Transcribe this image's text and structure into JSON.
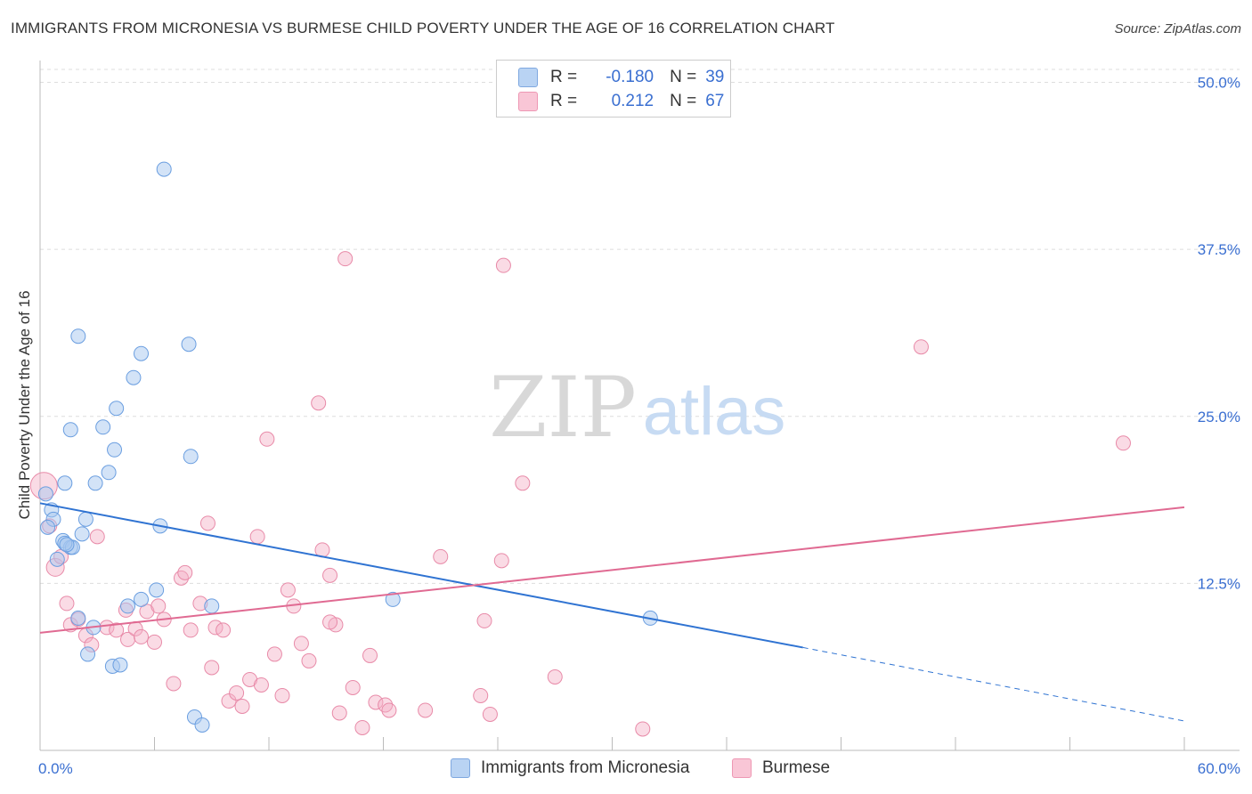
{
  "title": "IMMIGRANTS FROM MICRONESIA VS BURMESE CHILD POVERTY UNDER THE AGE OF 16 CORRELATION CHART",
  "source": "Source: ZipAtlas.com",
  "watermark": {
    "zip": "ZIP",
    "atlas": "atlas"
  },
  "legend": {
    "r_label": "R =",
    "n_label": "N =",
    "rows": [
      {
        "r": "-0.180",
        "n": "39"
      },
      {
        "r": "0.212",
        "n": "67"
      }
    ]
  },
  "chart_data": {
    "type": "scatter",
    "title": "IMMIGRANTS FROM MICRONESIA VS BURMESE CHILD POVERTY UNDER THE AGE OF 16 CORRELATION CHART",
    "xlabel": "",
    "ylabel": "Child Poverty Under the Age of 16",
    "xlim": [
      0,
      60
    ],
    "ylim": [
      0,
      51.5
    ],
    "x_tick_labels": [
      "0.0%",
      "60.0%"
    ],
    "y_ticks": [
      12.5,
      25.0,
      37.5,
      50.0
    ],
    "y_tick_labels": [
      "12.5%",
      "25.0%",
      "37.5%",
      "50.0%"
    ],
    "colors": {
      "micronesia": "#a8c8f0",
      "micronesia_line": "#2f73d2",
      "burmese": "#f5b0c5",
      "burmese_line": "#e06a92",
      "tick_label": "#3a6fd1"
    },
    "series": [
      {
        "name": "Immigrants from Micronesia",
        "r": -0.18,
        "n": 39,
        "trend": {
          "x0": 0,
          "y0": 18.5,
          "x1": 40,
          "y1": 7.7,
          "dashed_to_x": 60,
          "dashed_to_y": 2.2
        },
        "points": [
          [
            6.5,
            43.5
          ],
          [
            2.0,
            31.0
          ],
          [
            5.3,
            29.7
          ],
          [
            7.8,
            30.4
          ],
          [
            4.9,
            27.9
          ],
          [
            4.0,
            25.6
          ],
          [
            1.6,
            24.0
          ],
          [
            3.3,
            24.2
          ],
          [
            3.9,
            22.5
          ],
          [
            7.9,
            22.0
          ],
          [
            3.6,
            20.8
          ],
          [
            1.3,
            20.0
          ],
          [
            2.9,
            20.0
          ],
          [
            0.3,
            19.2
          ],
          [
            0.6,
            18.0
          ],
          [
            0.7,
            17.3
          ],
          [
            2.4,
            17.3
          ],
          [
            6.3,
            16.8
          ],
          [
            2.2,
            16.2
          ],
          [
            1.2,
            15.7
          ],
          [
            1.6,
            15.2
          ],
          [
            1.7,
            15.2
          ],
          [
            0.9,
            14.3
          ],
          [
            6.1,
            12.0
          ],
          [
            5.3,
            11.3
          ],
          [
            4.6,
            10.8
          ],
          [
            9.0,
            10.8
          ],
          [
            18.5,
            11.3
          ],
          [
            2.0,
            9.9
          ],
          [
            2.8,
            9.2
          ],
          [
            2.5,
            7.2
          ],
          [
            3.8,
            6.3
          ],
          [
            4.2,
            6.4
          ],
          [
            8.1,
            2.5
          ],
          [
            8.5,
            1.9
          ],
          [
            32.0,
            9.9
          ],
          [
            0.4,
            16.7
          ],
          [
            1.3,
            15.5
          ],
          [
            1.4,
            15.4
          ]
        ]
      },
      {
        "name": "Burmese",
        "r": 0.212,
        "n": 67,
        "trend": {
          "x0": 0,
          "y0": 8.8,
          "x1": 60,
          "y1": 18.2
        },
        "points": [
          [
            0.2,
            19.8
          ],
          [
            0.5,
            16.8
          ],
          [
            0.8,
            13.7
          ],
          [
            1.1,
            14.5
          ],
          [
            1.4,
            11.0
          ],
          [
            1.6,
            9.4
          ],
          [
            2.0,
            9.8
          ],
          [
            2.4,
            8.6
          ],
          [
            2.7,
            7.9
          ],
          [
            3.0,
            16.0
          ],
          [
            3.5,
            9.2
          ],
          [
            4.0,
            9.0
          ],
          [
            4.5,
            10.5
          ],
          [
            4.6,
            8.3
          ],
          [
            5.0,
            9.1
          ],
          [
            5.3,
            8.5
          ],
          [
            5.6,
            10.4
          ],
          [
            6.0,
            8.1
          ],
          [
            6.2,
            10.8
          ],
          [
            6.5,
            9.8
          ],
          [
            7.0,
            5.0
          ],
          [
            7.4,
            12.9
          ],
          [
            7.6,
            13.3
          ],
          [
            7.9,
            9.0
          ],
          [
            8.4,
            11.0
          ],
          [
            8.8,
            17.0
          ],
          [
            9.0,
            6.2
          ],
          [
            9.2,
            9.2
          ],
          [
            9.6,
            9.0
          ],
          [
            9.9,
            3.7
          ],
          [
            10.3,
            4.3
          ],
          [
            10.6,
            3.3
          ],
          [
            11.0,
            5.3
          ],
          [
            11.4,
            16.0
          ],
          [
            11.6,
            4.9
          ],
          [
            11.9,
            23.3
          ],
          [
            12.3,
            7.2
          ],
          [
            12.7,
            4.1
          ],
          [
            13.0,
            12.0
          ],
          [
            13.3,
            10.8
          ],
          [
            13.7,
            8.0
          ],
          [
            14.1,
            6.7
          ],
          [
            14.6,
            26.0
          ],
          [
            15.2,
            13.1
          ],
          [
            15.5,
            9.4
          ],
          [
            15.7,
            2.8
          ],
          [
            15.2,
            9.6
          ],
          [
            16.0,
            36.8
          ],
          [
            16.4,
            4.7
          ],
          [
            16.9,
            1.7
          ],
          [
            17.3,
            7.1
          ],
          [
            17.6,
            3.6
          ],
          [
            18.1,
            3.4
          ],
          [
            18.3,
            3.0
          ],
          [
            20.2,
            3.0
          ],
          [
            21.0,
            14.5
          ],
          [
            23.1,
            4.1
          ],
          [
            23.3,
            9.7
          ],
          [
            23.6,
            2.7
          ],
          [
            24.2,
            14.2
          ],
          [
            24.3,
            36.3
          ],
          [
            25.3,
            20.0
          ],
          [
            27.0,
            5.5
          ],
          [
            31.6,
            1.6
          ],
          [
            46.2,
            30.2
          ],
          [
            56.8,
            23.0
          ],
          [
            14.8,
            15.0
          ]
        ]
      }
    ],
    "legend_position": "top-center",
    "grid": true
  },
  "bottom_legend": [
    "Immigrants from Micronesia",
    "Burmese"
  ]
}
